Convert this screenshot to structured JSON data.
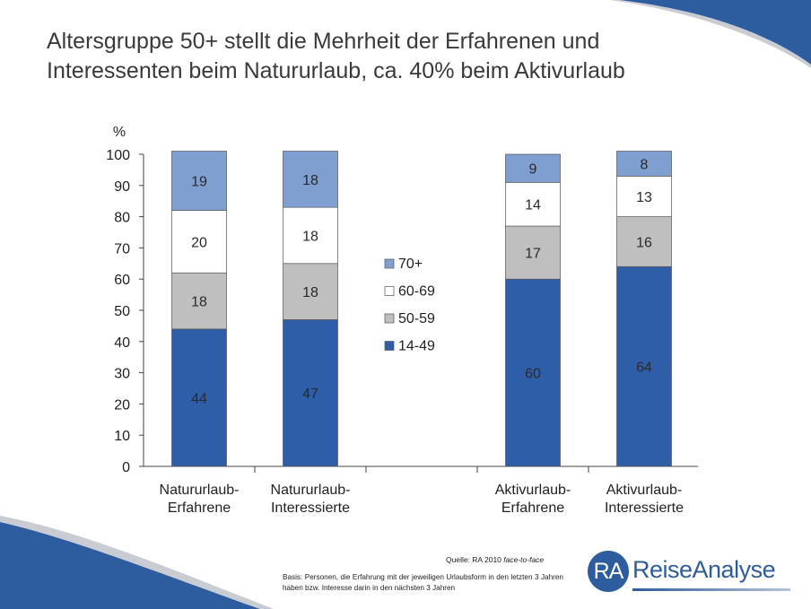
{
  "title_lines": [
    "Altersgruppe 50+ stellt die Mehrheit der Erfahrenen und",
    "Interessenten beim Natururlaub, ca. 40% beim Aktivurlaub"
  ],
  "chart_data": {
    "type": "bar",
    "stacked": true,
    "ylabel": "%",
    "ylim": [
      0,
      100
    ],
    "yticks": [
      0,
      10,
      20,
      30,
      40,
      50,
      60,
      70,
      80,
      90,
      100
    ],
    "categories": [
      [
        "Natururlaub-",
        "Erfahrene"
      ],
      [
        "Natururlaub-",
        "Interessierte"
      ],
      [
        "Aktivurlaub-",
        "Erfahrene"
      ],
      [
        "Aktivurlaub-",
        "Interessierte"
      ]
    ],
    "series": [
      {
        "name": "14-49",
        "values": [
          44,
          47,
          60,
          64
        ],
        "color": "#2f5ea8",
        "label_color": "#d9e1ee"
      },
      {
        "name": "50-59",
        "values": [
          18,
          18,
          17,
          16
        ],
        "color": "#bfbfbf",
        "label_color": "#333333"
      },
      {
        "name": "60-69",
        "values": [
          20,
          18,
          14,
          13
        ],
        "color": "#ffffff",
        "label_color": "#333333"
      },
      {
        "name": "70+",
        "values": [
          19,
          18,
          9,
          8
        ],
        "color": "#7f9fd0",
        "label_color": "#333333"
      }
    ],
    "legend_order": [
      "70+",
      "60-69",
      "50-59",
      "14-49"
    ],
    "legend_position": "center-gap",
    "grid": false
  },
  "footer": {
    "source_prefix": "Quelle: RA 2010 ",
    "source_italic": "face-to-face",
    "basis": "Basis: Personen, die Erfahrung mit der jeweiligen Urlaubsform in den letzten 3 Jahren haben bzw. Interesse darin in den nächsten 3 Jahren"
  },
  "logo": {
    "mark": "RA",
    "name": "ReiseAnalyse"
  },
  "colors": {
    "brand": "#2f5c9a",
    "swoosh": "#2d5d9e"
  }
}
